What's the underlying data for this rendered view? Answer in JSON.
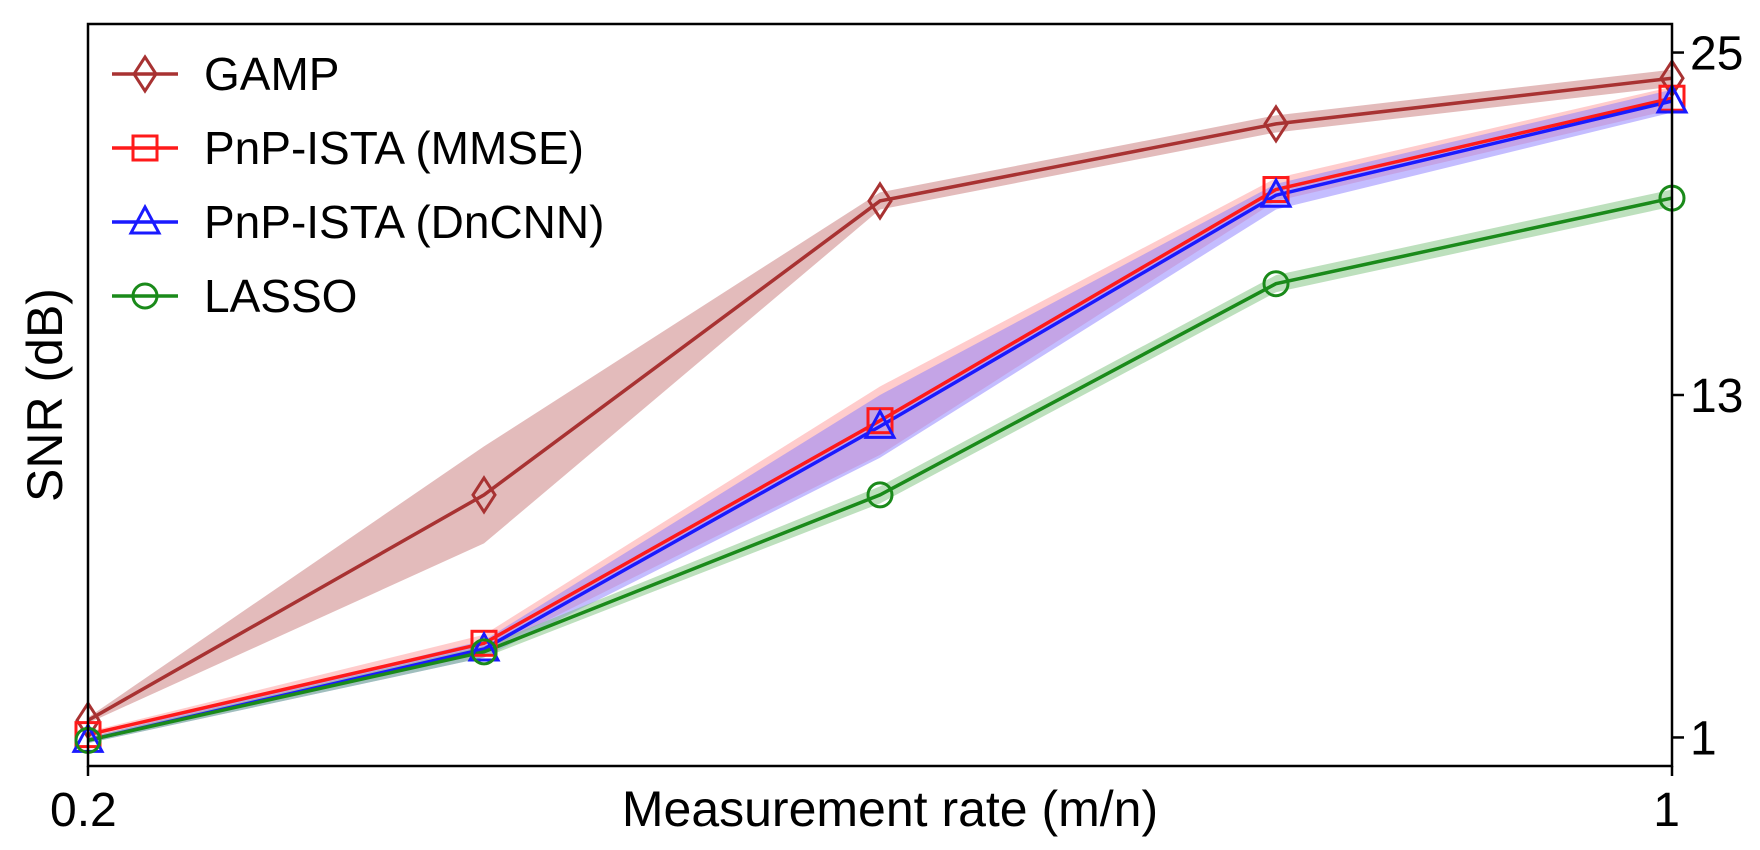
{
  "chart_data": {
    "type": "line",
    "xlabel": "Measurement rate (m/n)",
    "ylabel": "SNR (dB)",
    "xlim": [
      0.2,
      1.0
    ],
    "ylim": [
      0.0,
      26.0
    ],
    "x_ticks": [
      0.2,
      1.0
    ],
    "x_tick_labels": [
      "0.2",
      "1"
    ],
    "y_ticks": [
      1,
      13,
      25
    ],
    "y_tick_labels": [
      "1",
      "13",
      "25"
    ],
    "y_axis_side": "right",
    "grid": false,
    "legend_position": "top-left",
    "x": [
      0.2,
      0.4,
      0.6,
      0.8,
      1.0
    ],
    "series": [
      {
        "name": "GAMP",
        "marker": "diamond",
        "color": "#a83232",
        "band_color": "#c87878",
        "values": [
          1.6,
          9.5,
          19.8,
          22.5,
          24.1
        ],
        "lower": [
          1.5,
          7.8,
          19.5,
          22.2,
          23.8
        ],
        "upper": [
          1.7,
          11.2,
          20.1,
          22.8,
          24.4
        ]
      },
      {
        "name": "PnP-ISTA (MMSE)",
        "marker": "square",
        "color": "#ff1a1a",
        "band_color": "#ff9a9a",
        "values": [
          1.1,
          4.3,
          12.1,
          20.2,
          23.4
        ],
        "lower": [
          1.0,
          4.0,
          10.9,
          19.8,
          23.0
        ],
        "upper": [
          1.2,
          4.6,
          13.3,
          20.6,
          23.8
        ]
      },
      {
        "name": "PnP-ISTA (DnCNN)",
        "marker": "triangle",
        "color": "#1a1aff",
        "band_color": "#8a7cff",
        "values": [
          0.9,
          4.1,
          11.9,
          20.0,
          23.3
        ],
        "lower": [
          0.8,
          3.8,
          10.8,
          19.5,
          22.9
        ],
        "upper": [
          1.0,
          4.4,
          13.0,
          20.4,
          23.7
        ]
      },
      {
        "name": "LASSO",
        "marker": "circle",
        "color": "#1a8a1a",
        "band_color": "#7cc27c",
        "values": [
          0.9,
          4.0,
          9.5,
          16.9,
          19.9
        ],
        "lower": [
          0.8,
          3.8,
          9.2,
          16.6,
          19.6
        ],
        "upper": [
          1.0,
          4.2,
          9.8,
          17.2,
          20.2
        ]
      }
    ]
  }
}
